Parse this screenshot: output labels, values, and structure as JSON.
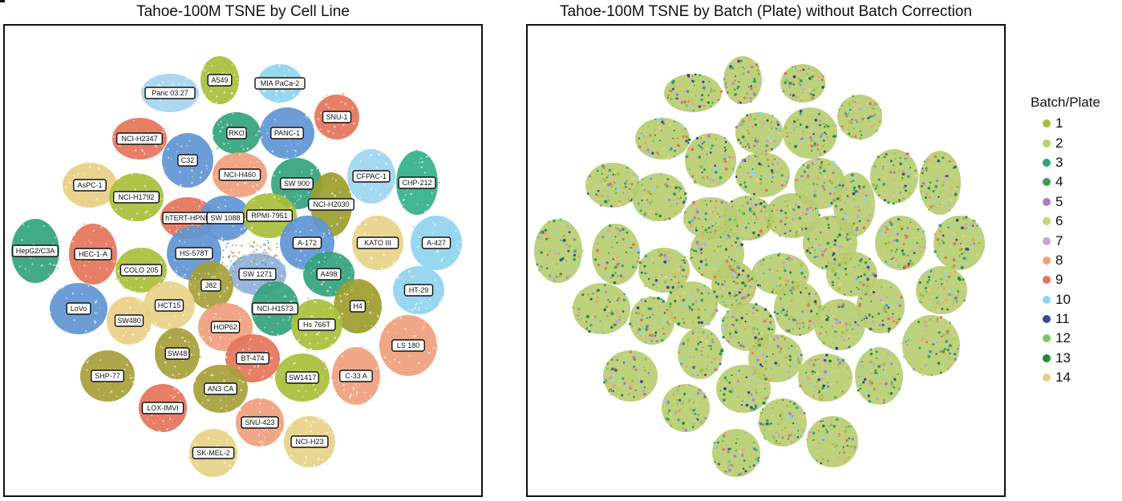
{
  "chart_data": [
    {
      "type": "scatter",
      "title": "Tahoe-100M TSNE by Cell Line",
      "xlabel": "",
      "ylabel": "",
      "grid": false,
      "point_labels": [
        "A549",
        "MIA PaCa-2",
        "Panc 03.27",
        "SNU-1",
        "RKO",
        "PANC-1",
        "NCI-H2347",
        "C32",
        "NCI-H460",
        "CFPAC-1",
        "CHP-212",
        "SW 900",
        "AsPC-1",
        "NCI-H1792",
        "NCI-H2030",
        "hTERT-HPNE",
        "SW 1088",
        "RPMI-7951",
        "KATO III",
        "A-427",
        "HepG2/C3A",
        "HEC-1-A",
        "HS-578T",
        "A-172",
        "COLO 205",
        "SW 1271",
        "A498",
        "J82",
        "HT-29",
        "LoVo",
        "HCT15",
        "NCI-H1573",
        "H4",
        "SW480",
        "HOP62",
        "Hs 766T",
        "LS 180",
        "SW48",
        "BT-474",
        "C-33 A",
        "SHP-77",
        "SW1417",
        "AN3 CA",
        "LOX-IMVI",
        "SNU-423",
        "NCI-H23",
        "SK-MEL-2"
      ],
      "cluster_colors": [
        "#a9bf3a",
        "#8fd4ee",
        "#a6d5f0",
        "#e5745a",
        "#33a37d",
        "#5f95d4",
        "#e5745a",
        "#5f95d4",
        "#f0a07d",
        "#9dd6f0",
        "#33b08a",
        "#33a37d",
        "#e8cf84",
        "#a9bf3a",
        "#9d9d2d",
        "#e5745a",
        "#5f95d4",
        "#a9bf3a",
        "#e8d38a",
        "#8fd4ee",
        "#33a37d",
        "#e5745a",
        "#5f95d4",
        "#5f95d4",
        "#a9bf3a",
        "#8fb0d8",
        "#33a37d",
        "#a6a03a",
        "#8fd4ee",
        "#5f95d4",
        "#e8d38a",
        "#33a37d",
        "#9d9d2d",
        "#e8cf84",
        "#f0a07d",
        "#a9bf3a",
        "#f0a07d",
        "#a6a03a",
        "#e5745a",
        "#f0a07d",
        "#a6a03a",
        "#a9bf3a",
        "#a6a03a",
        "#e5745a",
        "#f0a07d",
        "#e8d38a",
        "#e8d38a"
      ]
    },
    {
      "type": "scatter",
      "title": "Tahoe-100M TSNE by Batch (Plate) without Batch Correction",
      "xlabel": "",
      "ylabel": "",
      "grid": false,
      "legend": {
        "title": "Batch/Plate",
        "placement": "right",
        "entries": [
          {
            "label": "1",
            "color": "#a9bf3a"
          },
          {
            "label": "2",
            "color": "#b6d46a"
          },
          {
            "label": "3",
            "color": "#33a37d"
          },
          {
            "label": "4",
            "color": "#3f9c55"
          },
          {
            "label": "5",
            "color": "#a981c2"
          },
          {
            "label": "6",
            "color": "#c3d67a"
          },
          {
            "label": "7",
            "color": "#c0a6d6"
          },
          {
            "label": "8",
            "color": "#f0a07d"
          },
          {
            "label": "9",
            "color": "#e5745a"
          },
          {
            "label": "10",
            "color": "#8fd4ee"
          },
          {
            "label": "11",
            "color": "#3d4a8c"
          },
          {
            "label": "12",
            "color": "#86c06a"
          },
          {
            "label": "13",
            "color": "#1e8a3c"
          },
          {
            "label": "14",
            "color": "#e8cf84"
          }
        ]
      }
    }
  ]
}
